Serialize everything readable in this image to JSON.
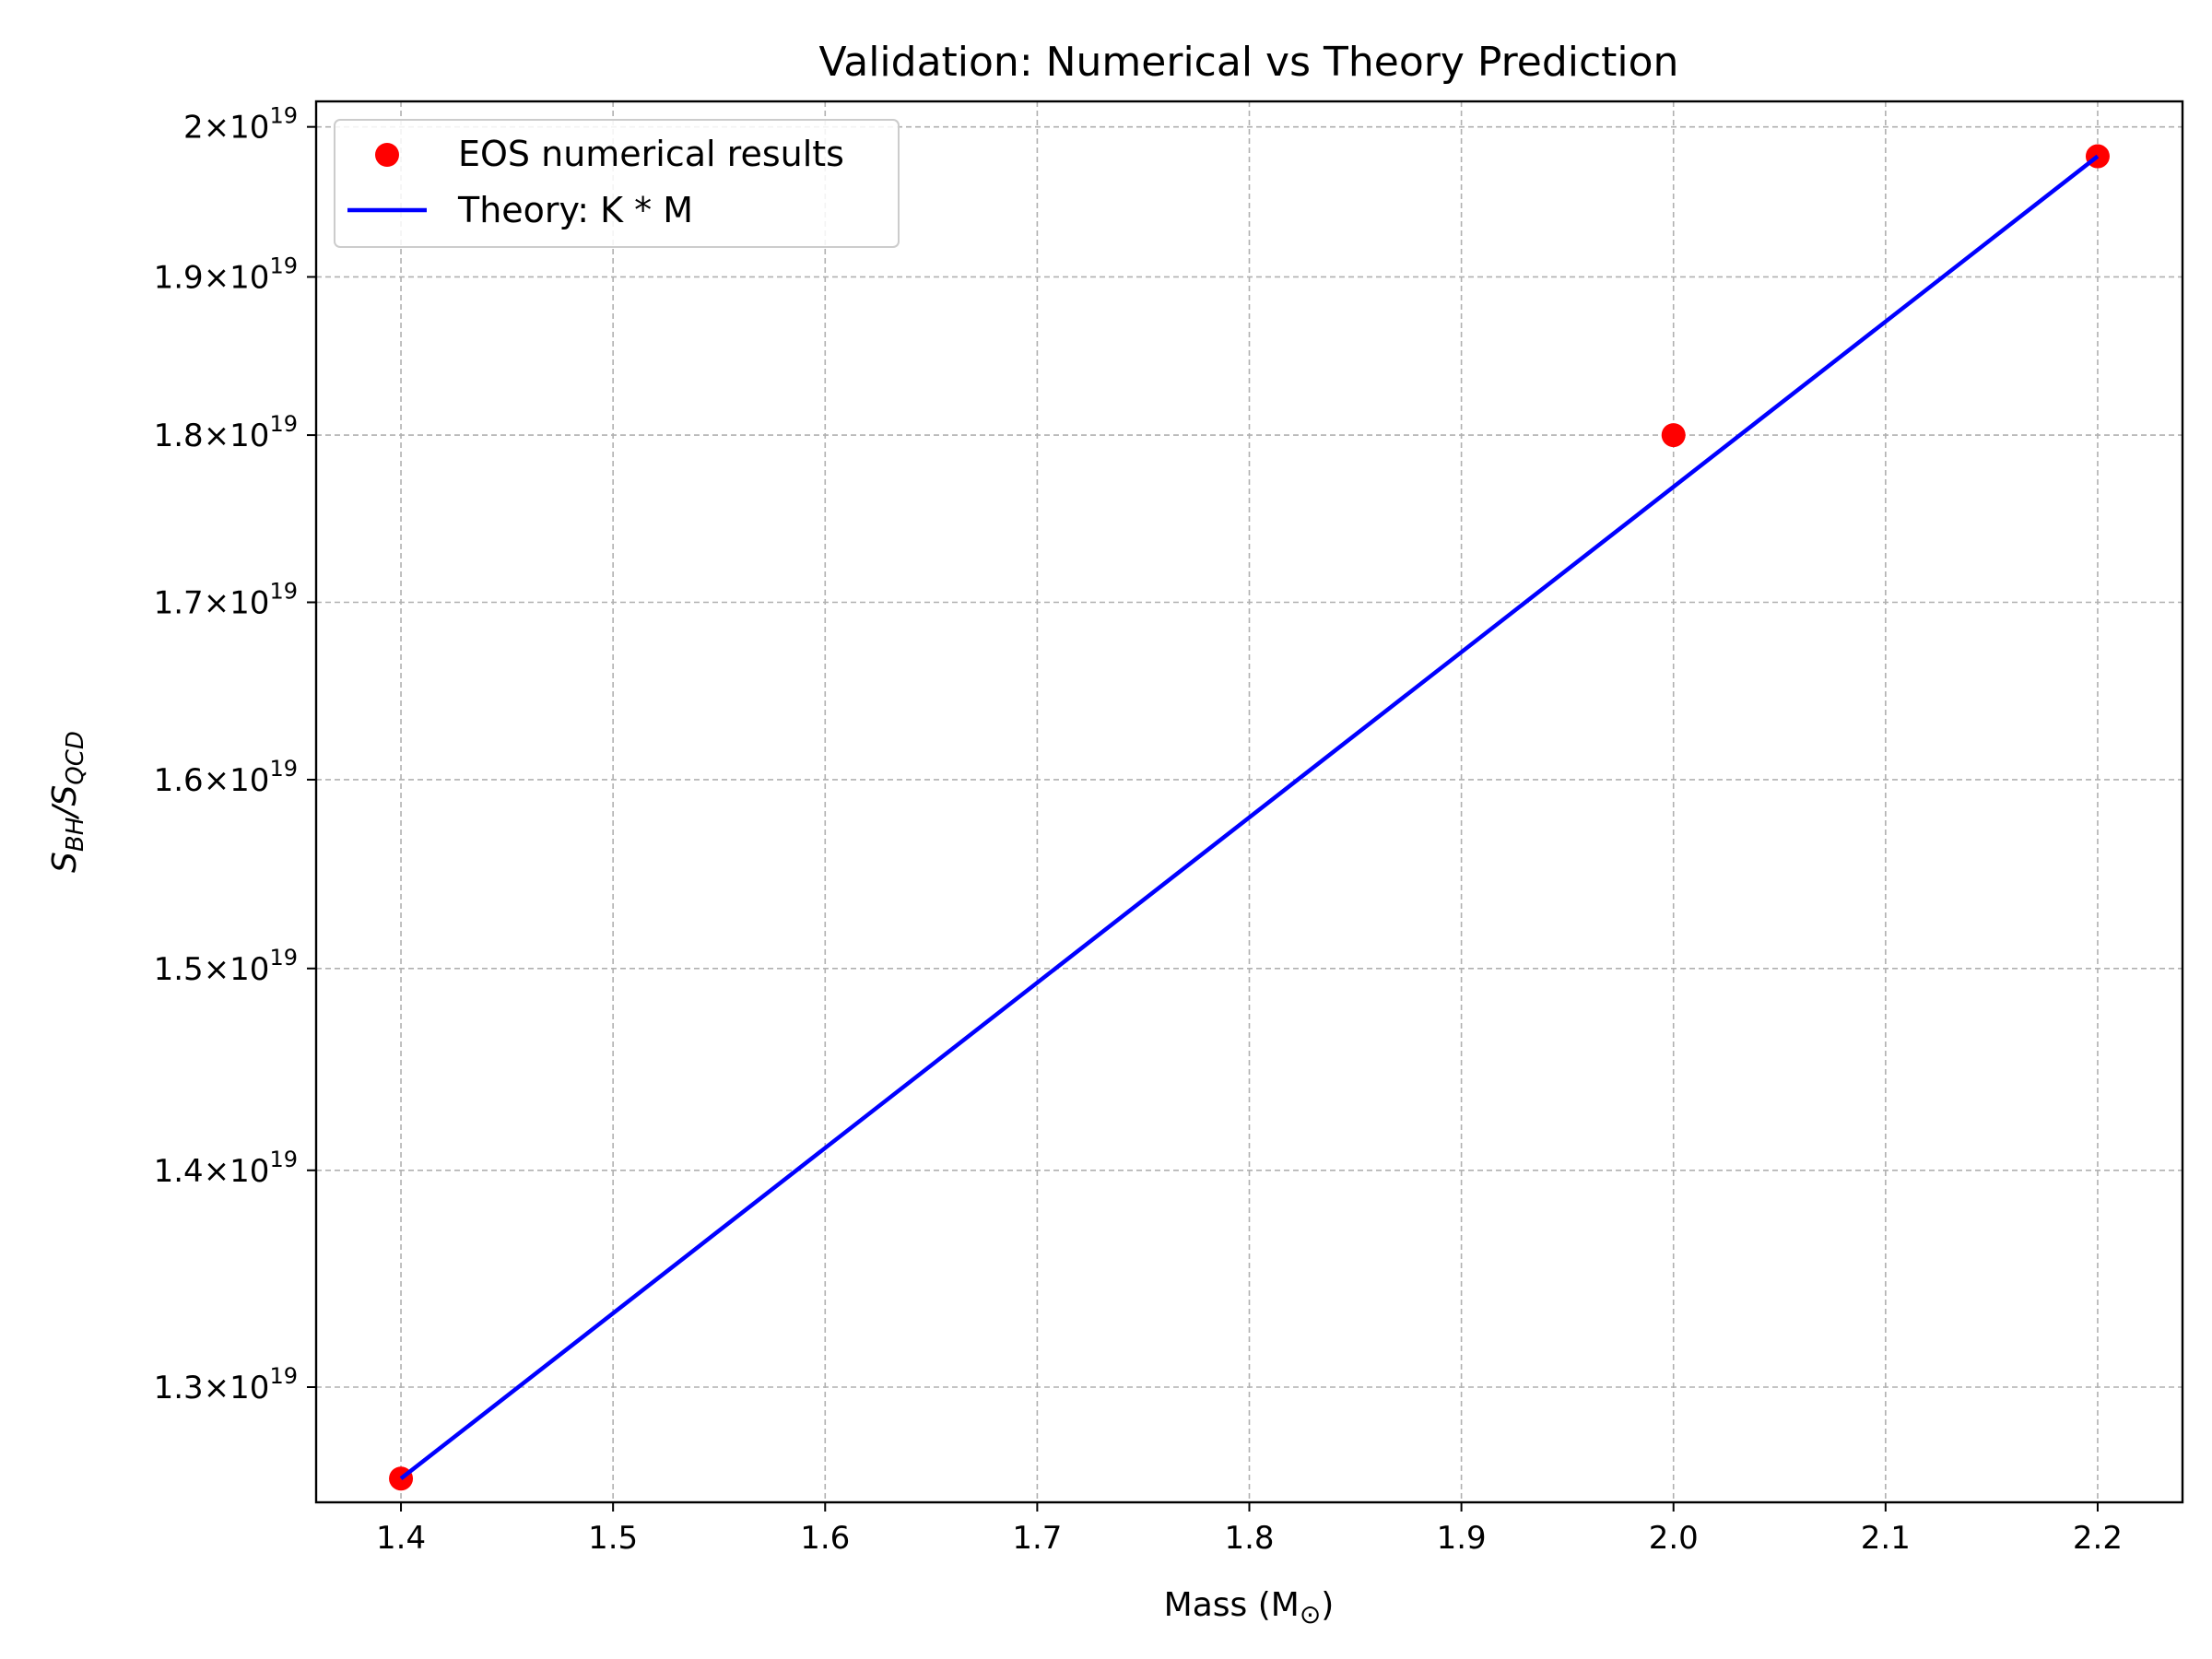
{
  "chart_data": {
    "type": "line",
    "title": "Validation: Numerical vs Theory Prediction",
    "xlabel": "Mass (M",
    "xlabel_symbol": "⊙",
    "xlabel_suffix": ")",
    "ylabel": "S_BH/S_QCD",
    "ylabel_base": "S",
    "ylabel_sub1": "BH",
    "ylabel_sep": "/S",
    "ylabel_sub2": "QCD",
    "xlim": [
      1.36,
      2.24
    ],
    "ylim": [
      1.2498e+19,
      2.0175e+19
    ],
    "yscale": "log",
    "grid": true,
    "legend_position": "upper-left",
    "x_ticks": [
      "1.4",
      "1.5",
      "1.6",
      "1.7",
      "1.8",
      "1.9",
      "2.0",
      "2.1",
      "2.2"
    ],
    "y_ticks": [
      {
        "value": 1.3e+19,
        "mantissa": "1.3",
        "exponent": "19"
      },
      {
        "value": 1.4e+19,
        "mantissa": "1.4",
        "exponent": "19"
      },
      {
        "value": 1.5e+19,
        "mantissa": "1.5",
        "exponent": "19"
      },
      {
        "value": 1.6e+19,
        "mantissa": "1.6",
        "exponent": "19"
      },
      {
        "value": 1.7e+19,
        "mantissa": "1.7",
        "exponent": "19"
      },
      {
        "value": 1.8e+19,
        "mantissa": "1.8",
        "exponent": "19"
      },
      {
        "value": 1.9e+19,
        "mantissa": "1.9",
        "exponent": "19"
      },
      {
        "value": 2e+19,
        "mantissa": "2",
        "exponent": "19"
      }
    ],
    "series": [
      {
        "name": "EOS numerical results",
        "kind": "scatter",
        "color": "#ff0000",
        "x": [
          1.4,
          2.0,
          2.2
        ],
        "y": [
          1.26e+19,
          1.8e+19,
          1.98e+19
        ]
      },
      {
        "name": "Theory: K * M",
        "kind": "line",
        "color": "#0000ff",
        "x": [
          1.4,
          2.2
        ],
        "y": [
          1.26e+19,
          1.98e+19
        ]
      }
    ]
  }
}
